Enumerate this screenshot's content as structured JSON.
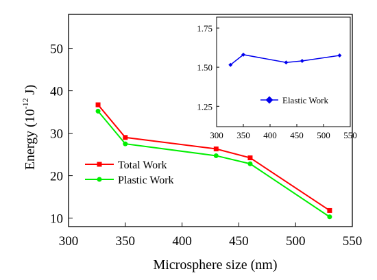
{
  "chart_data": [
    {
      "type": "line",
      "title": "",
      "xlabel": "Microsphere size (nm)",
      "ylabel_main": "Energy (10",
      "ylabel_sup": "-12",
      "ylabel_tail": " J)",
      "xlim": [
        300,
        550
      ],
      "ylim": [
        8,
        58
      ],
      "xticks": [
        "300",
        "350",
        "400",
        "450",
        "500",
        "550"
      ],
      "xtick_values": [
        300,
        350,
        400,
        450,
        500,
        550
      ],
      "yticks": [
        "10",
        "20",
        "30",
        "40",
        "50"
      ],
      "ytick_values": [
        10,
        20,
        30,
        40,
        50
      ],
      "legend_position": "center-left",
      "series": [
        {
          "name": "Total   Work",
          "color": "#ff0000",
          "marker": "square",
          "x": [
            326,
            350,
            430,
            460,
            530
          ],
          "y": [
            36.7,
            29.0,
            26.3,
            24.2,
            11.8
          ]
        },
        {
          "name": "Plastic Work",
          "color": "#00ee00",
          "marker": "circle",
          "x": [
            326,
            350,
            430,
            460,
            530
          ],
          "y": [
            35.2,
            27.5,
            24.7,
            22.8,
            10.3
          ]
        }
      ]
    },
    {
      "type": "line",
      "title": "",
      "xlabel": "",
      "ylabel": "",
      "xlim": [
        300,
        550
      ],
      "ylim": [
        1.12,
        1.82
      ],
      "xticks": [
        "300",
        "350",
        "400",
        "450",
        "500",
        "550"
      ],
      "xtick_values": [
        300,
        350,
        400,
        450,
        500,
        550
      ],
      "yticks": [
        "1.25",
        "1.50",
        "1.75"
      ],
      "ytick_values": [
        1.25,
        1.5,
        1.75
      ],
      "legend_position": "bottom-center",
      "series": [
        {
          "name": "Elastic   Work",
          "color": "#0000ee",
          "marker": "diamond",
          "x": [
            326,
            350,
            430,
            460,
            530
          ],
          "y": [
            1.515,
            1.58,
            1.53,
            1.54,
            1.575
          ]
        }
      ]
    }
  ]
}
